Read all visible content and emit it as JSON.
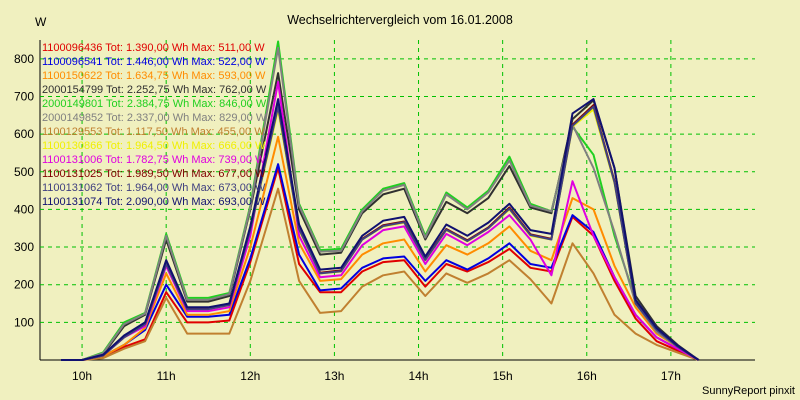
{
  "chart_data": {
    "type": "line",
    "title": "Wechselrichtervergleich vom 16.01.2008",
    "ylabel": "W",
    "xlabel": "",
    "credit": "SunnyReport pinxit",
    "ylim": [
      0,
      850
    ],
    "xlim": [
      9.5,
      18.0
    ],
    "yticks": [
      100,
      200,
      300,
      400,
      500,
      600,
      700,
      800
    ],
    "xticks": [
      10,
      11,
      12,
      13,
      14,
      15,
      16,
      17
    ],
    "xtick_labels": [
      "10h",
      "11h",
      "12h",
      "13h",
      "14h",
      "15h",
      "16h",
      "17h"
    ],
    "grid": true,
    "legend_position": "top-left",
    "x": [
      9.75,
      10.0,
      10.25,
      10.5,
      10.75,
      11.0,
      11.25,
      11.5,
      11.75,
      12.0,
      12.33,
      12.58,
      12.83,
      13.08,
      13.33,
      13.58,
      13.83,
      14.08,
      14.33,
      14.58,
      14.83,
      15.08,
      15.33,
      15.58,
      15.83,
      16.08,
      16.33,
      16.58,
      16.83,
      17.08,
      17.33
    ],
    "series": [
      {
        "name": "1100096436",
        "label": "1100096436 Tot: 1.390,00 Wh Max: 511,00 W",
        "color": "#e00000",
        "values": [
          0,
          0,
          8,
          35,
          55,
          180,
          100,
          100,
          105,
          260,
          510,
          255,
          180,
          180,
          235,
          260,
          265,
          195,
          255,
          235,
          260,
          295,
          245,
          235,
          380,
          330,
          210,
          110,
          50,
          25,
          0
        ]
      },
      {
        "name": "1100096541",
        "label": "1100096541 Tot: 1.446,00 Wh Max: 522,00 W",
        "color": "#0000e0",
        "values": [
          0,
          0,
          10,
          40,
          80,
          200,
          115,
          115,
          120,
          270,
          520,
          280,
          185,
          190,
          245,
          270,
          275,
          210,
          265,
          240,
          270,
          310,
          255,
          245,
          385,
          340,
          220,
          120,
          60,
          30,
          0
        ]
      },
      {
        "name": "1100150622",
        "label": "1100150622 Tot: 1.634,75 Wh Max: 593,00 W",
        "color": "#ff8c00",
        "values": [
          0,
          0,
          10,
          40,
          85,
          230,
          120,
          120,
          130,
          300,
          593,
          310,
          210,
          215,
          280,
          310,
          320,
          235,
          305,
          280,
          310,
          355,
          290,
          265,
          430,
          400,
          250,
          140,
          70,
          35,
          0
        ]
      },
      {
        "name": "2000154799",
        "label": "2000154799 Tot: 2.252,75 Wh Max: 762,00 W",
        "color": "#303030",
        "values": [
          0,
          0,
          15,
          90,
          120,
          320,
          155,
          155,
          170,
          400,
          762,
          400,
          280,
          285,
          390,
          440,
          455,
          320,
          420,
          390,
          430,
          515,
          405,
          390,
          640,
          690,
          510,
          170,
          90,
          40,
          0
        ]
      },
      {
        "name": "2000149801",
        "label": "2000149801 Tot: 2.384,75 Wh Max: 846,00 W",
        "color": "#20d020",
        "values": [
          0,
          0,
          20,
          100,
          125,
          335,
          165,
          165,
          178,
          410,
          846,
          415,
          292,
          295,
          400,
          455,
          470,
          330,
          445,
          405,
          450,
          540,
          415,
          395,
          620,
          545,
          330,
          160,
          80,
          35,
          0
        ]
      },
      {
        "name": "2000149852",
        "label": "2000149852 Tot: 2.337,00 Wh Max: 829,00 W",
        "color": "#808080",
        "values": [
          0,
          0,
          18,
          95,
          123,
          330,
          160,
          160,
          175,
          405,
          829,
          410,
          288,
          290,
          395,
          450,
          465,
          325,
          440,
          400,
          445,
          530,
          410,
          395,
          625,
          510,
          340,
          150,
          75,
          35,
          0
        ]
      },
      {
        "name": "1100129553",
        "label": "1100129553 Tot: 1.117,50 Wh Max: 455,00 W",
        "color": "#c08030",
        "values": [
          0,
          0,
          5,
          30,
          50,
          165,
          70,
          70,
          70,
          210,
          455,
          210,
          125,
          130,
          195,
          225,
          235,
          170,
          230,
          205,
          230,
          265,
          215,
          150,
          310,
          230,
          120,
          70,
          40,
          20,
          0
        ]
      },
      {
        "name": "1100130866",
        "label": "1100130866 Tot: 1.964,50 Wh Max: 666,00 W",
        "color": "#f0f000",
        "values": [
          0,
          0,
          12,
          60,
          95,
          255,
          135,
          135,
          145,
          345,
          666,
          345,
          230,
          235,
          320,
          355,
          365,
          265,
          345,
          315,
          350,
          400,
          330,
          320,
          620,
          666,
          470,
          150,
          80,
          35,
          0
        ]
      },
      {
        "name": "1100131006",
        "label": "1100131006 Tot: 1.782,75 Wh Max: 739,00 W",
        "color": "#e000e0",
        "values": [
          0,
          0,
          12,
          60,
          90,
          250,
          130,
          130,
          140,
          330,
          739,
          330,
          220,
          225,
          305,
          345,
          355,
          255,
          335,
          305,
          340,
          385,
          320,
          225,
          475,
          330,
          220,
          120,
          60,
          30,
          0
        ]
      },
      {
        "name": "1100131025",
        "label": "1100131025 Tot: 1.989,50 Wh Max: 677,00 W",
        "color": "#800000",
        "values": [
          0,
          0,
          12,
          62,
          96,
          258,
          136,
          136,
          147,
          348,
          677,
          350,
          232,
          238,
          322,
          358,
          368,
          268,
          348,
          318,
          352,
          405,
          334,
          322,
          625,
          677,
          475,
          152,
          82,
          36,
          0
        ]
      },
      {
        "name": "1100131062",
        "label": "1100131062 Tot: 1.964,00 Wh Max: 673,00 W",
        "color": "#404080",
        "values": [
          0,
          0,
          12,
          60,
          95,
          255,
          135,
          135,
          146,
          346,
          673,
          348,
          230,
          236,
          320,
          356,
          366,
          266,
          346,
          316,
          350,
          402,
          332,
          320,
          622,
          673,
          472,
          150,
          80,
          35,
          0
        ]
      },
      {
        "name": "1100131074",
        "label": "1100131074 Tot: 2.090,00 Wh Max: 693,00 W",
        "color": "#101070",
        "values": [
          0,
          0,
          14,
          65,
          100,
          265,
          140,
          140,
          150,
          355,
          693,
          360,
          240,
          245,
          330,
          370,
          380,
          275,
          360,
          330,
          365,
          415,
          345,
          335,
          655,
          693,
          510,
          160,
          85,
          38,
          0
        ]
      }
    ]
  }
}
